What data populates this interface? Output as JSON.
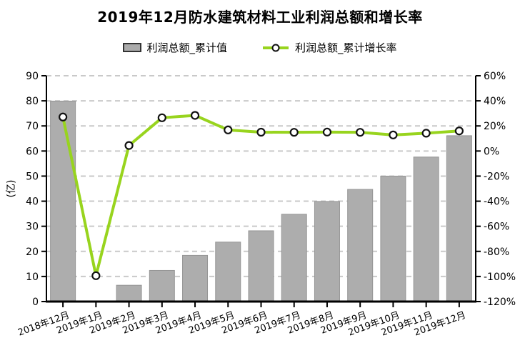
{
  "title": "2019年12月防水建筑材料工业利润总额和增长率",
  "legend": {
    "bar_label": "利润总额_累计值",
    "line_label": "利润总额_累计增长率"
  },
  "axes": {
    "left_ticks": [
      "90",
      "80",
      "70",
      "60",
      "50",
      "40",
      "30",
      "20",
      "10",
      "0"
    ],
    "right_ticks": [
      "60%",
      "40%",
      "20%",
      "0%",
      "-20%",
      "-40%",
      "-60%",
      "-80%",
      "-100%",
      "-120%"
    ],
    "left_axis_label": "(亿)"
  },
  "chart_data": {
    "type": "bar",
    "subtype": "bar+line-dual-axis",
    "title": "2019年12月防水建筑材料工业利润总额和增长率",
    "categories": [
      "2018年12月",
      "2019年1月",
      "2019年2月",
      "2019年3月",
      "2019年4月",
      "2019年5月",
      "2019年6月",
      "2019年7月",
      "2019年8月",
      "2019年9月",
      "2019年10月",
      "2019年11月",
      "2019年12月"
    ],
    "series": [
      {
        "name": "利润总额_累计值",
        "type": "bar",
        "axis": "left",
        "unit": "亿",
        "values": [
          79.9,
          null,
          6.5,
          12.4,
          18.4,
          23.7,
          28.2,
          34.8,
          39.9,
          44.7,
          50.0,
          57.6,
          66.1
        ]
      },
      {
        "name": "利润总额_累计增长率",
        "type": "line",
        "axis": "right",
        "unit": "%",
        "values": [
          27.1,
          -99.4,
          4.4,
          26.5,
          28.4,
          16.8,
          15.0,
          14.9,
          15.1,
          14.9,
          12.8,
          14.2,
          16.0
        ]
      }
    ],
    "left_axis": {
      "label": "(亿)",
      "min": 0,
      "max": 90,
      "step": 10
    },
    "right_axis": {
      "min": -120,
      "max": 60,
      "step": 20,
      "format": "percent"
    },
    "grid": "horizontal-dashed",
    "legend_position": "top"
  },
  "colors": {
    "bar_fill": "#ADADAD",
    "bar_border": "#959595",
    "line": "#98D41E",
    "marker_fill": "#FFFFFF",
    "marker_stroke": "#111111",
    "grid": "#C9C9C9",
    "axis": "#000000",
    "text": "#000000"
  }
}
